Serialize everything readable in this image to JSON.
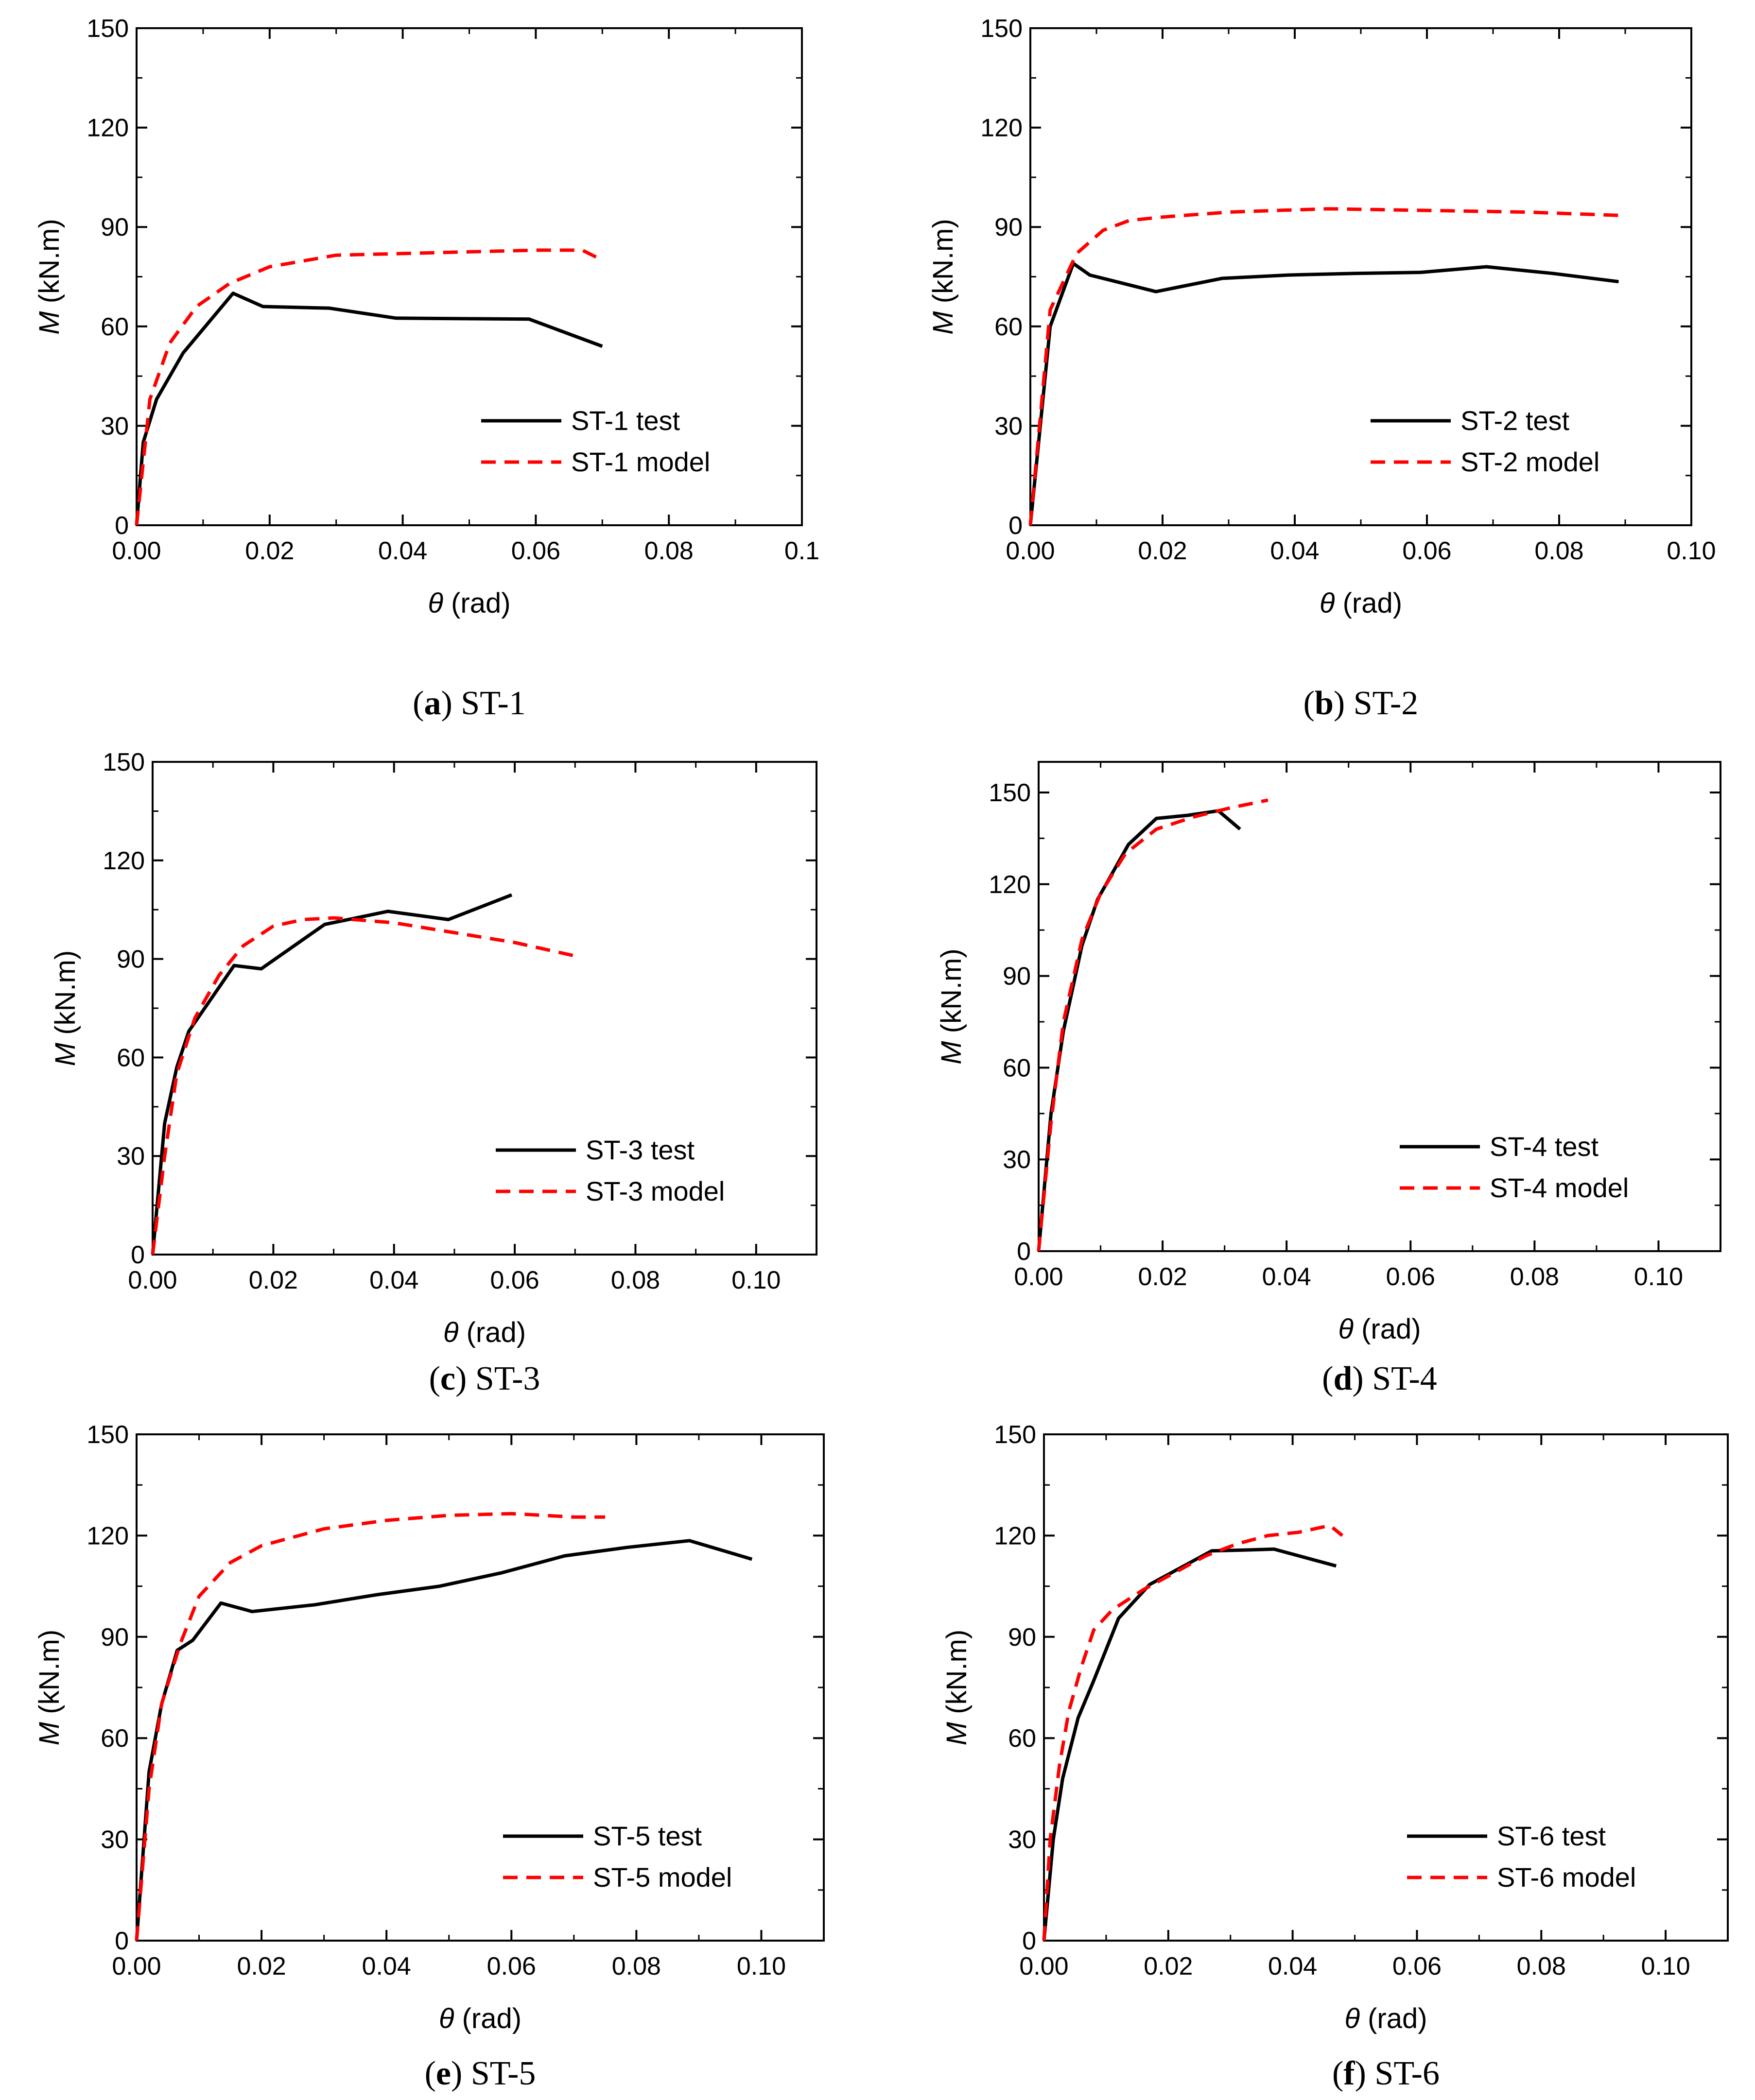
{
  "chart_data": [
    {
      "type": "line",
      "caption_letter": "a",
      "caption_name": "ST-1",
      "xlabel_symbol": "θ",
      "xlabel_unit": "(rad)",
      "ylabel_symbol": "M",
      "ylabel_unit": "(kN.m)",
      "xlim": [
        0,
        0.1
      ],
      "ylim": [
        0,
        150
      ],
      "x_ticks": [
        "0.00",
        "0.02",
        "0.04",
        "0.06",
        "0.08",
        "0.1"
      ],
      "y_ticks": [
        "0",
        "30",
        "60",
        "90",
        "120",
        "150"
      ],
      "legend_position": "lower-right",
      "series": [
        {
          "name": "ST-1 test",
          "style": "solid",
          "color": "#000000",
          "x": [
            0,
            0.001,
            0.003,
            0.007,
            0.0145,
            0.019,
            0.029,
            0.039,
            0.059,
            0.07
          ],
          "y": [
            0,
            25,
            38,
            52,
            70,
            66,
            65.5,
            62.5,
            62.2,
            54
          ]
        },
        {
          "name": "ST-1 model",
          "style": "dashed",
          "color": "#ff0000",
          "x": [
            0,
            0.002,
            0.005,
            0.009,
            0.014,
            0.02,
            0.03,
            0.04,
            0.05,
            0.06,
            0.067,
            0.07
          ],
          "y": [
            0,
            38,
            55,
            66,
            73,
            78,
            81.5,
            82,
            82.5,
            83,
            83,
            80
          ]
        }
      ]
    },
    {
      "type": "line",
      "caption_letter": "b",
      "caption_name": "ST-2",
      "xlabel_symbol": "θ",
      "xlabel_unit": "(rad)",
      "ylabel_symbol": "M",
      "ylabel_unit": "(kN.m)",
      "xlim": [
        0,
        0.1
      ],
      "ylim": [
        0,
        150
      ],
      "x_ticks": [
        "0.00",
        "0.02",
        "0.04",
        "0.06",
        "0.08",
        "0.10"
      ],
      "y_ticks": [
        "0",
        "30",
        "60",
        "90",
        "120",
        "150"
      ],
      "legend_position": "lower-right",
      "series": [
        {
          "name": "ST-2 test",
          "style": "solid",
          "color": "#000000",
          "x": [
            0,
            0.003,
            0.0065,
            0.009,
            0.019,
            0.029,
            0.039,
            0.049,
            0.059,
            0.069,
            0.079,
            0.089
          ],
          "y": [
            0,
            60,
            79,
            75.5,
            70.5,
            74.5,
            75.5,
            76,
            76.3,
            78,
            76,
            73.5
          ]
        },
        {
          "name": "ST-2 model",
          "style": "dashed",
          "color": "#ff0000",
          "x": [
            0,
            0.003,
            0.007,
            0.011,
            0.015,
            0.02,
            0.03,
            0.045,
            0.06,
            0.075,
            0.089
          ],
          "y": [
            0,
            65,
            82,
            89,
            92,
            93,
            94.5,
            95.5,
            95,
            94.5,
            93.5
          ]
        }
      ]
    },
    {
      "type": "line",
      "caption_letter": "c",
      "caption_name": "ST-3",
      "xlabel_symbol": "θ",
      "xlabel_unit": "(rad)",
      "ylabel_symbol": "M",
      "ylabel_unit": "(kN.m)",
      "xlim": [
        0,
        0.11
      ],
      "ylim": [
        0,
        150
      ],
      "x_ticks": [
        "0.00",
        "0.02",
        "0.04",
        "0.06",
        "0.08",
        "0.10"
      ],
      "y_ticks": [
        "0",
        "30",
        "60",
        "90",
        "120",
        "150"
      ],
      "legend_position": "lower-right",
      "series": [
        {
          "name": "ST-3 test",
          "style": "solid",
          "color": "#000000",
          "x": [
            0,
            0.002,
            0.004,
            0.006,
            0.009,
            0.0135,
            0.018,
            0.0285,
            0.039,
            0.049,
            0.0595
          ],
          "y": [
            0,
            40,
            57,
            68,
            76,
            88,
            87,
            100.5,
            104.5,
            102,
            109.5
          ]
        },
        {
          "name": "ST-3 model",
          "style": "dashed",
          "color": "#ff0000",
          "x": [
            0,
            0.002,
            0.004,
            0.007,
            0.011,
            0.015,
            0.02,
            0.025,
            0.03,
            0.04,
            0.05,
            0.06,
            0.071
          ],
          "y": [
            0,
            30,
            55,
            72,
            85,
            94,
            100,
            102,
            102.5,
            101,
            98,
            95,
            90.5
          ]
        }
      ]
    },
    {
      "type": "line",
      "caption_letter": "d",
      "caption_name": "ST-4",
      "xlabel_symbol": "θ",
      "xlabel_unit": "(rad)",
      "ylabel_symbol": "M",
      "ylabel_unit": "(kN.m)",
      "xlim": [
        0,
        0.11
      ],
      "ylim": [
        0,
        160
      ],
      "x_ticks": [
        "0.00",
        "0.02",
        "0.04",
        "0.06",
        "0.08",
        "0.10"
      ],
      "y_ticks": [
        "0",
        "30",
        "60",
        "90",
        "120",
        "150"
      ],
      "legend_position": "lower-right",
      "series": [
        {
          "name": "ST-4 test",
          "style": "solid",
          "color": "#000000",
          "x": [
            0,
            0.002,
            0.004,
            0.007,
            0.0095,
            0.0145,
            0.019,
            0.024,
            0.029,
            0.0325
          ],
          "y": [
            0,
            45,
            72,
            100,
            115,
            133,
            141.5,
            142.5,
            144,
            138
          ]
        },
        {
          "name": "ST-4 model",
          "style": "dashed",
          "color": "#ff0000",
          "x": [
            0,
            0.002,
            0.004,
            0.007,
            0.01,
            0.014,
            0.019,
            0.025,
            0.031,
            0.037
          ],
          "y": [
            0,
            42,
            75,
            102,
            117,
            130,
            138,
            142,
            145,
            147.5
          ]
        }
      ]
    },
    {
      "type": "line",
      "caption_letter": "e",
      "caption_name": "ST-5",
      "xlabel_symbol": "θ",
      "xlabel_unit": "(rad)",
      "ylabel_symbol": "M",
      "ylabel_unit": "(kN.m)",
      "xlim": [
        0,
        0.11
      ],
      "ylim": [
        0,
        150
      ],
      "x_ticks": [
        "0.00",
        "0.02",
        "0.04",
        "0.06",
        "0.08",
        "0.10"
      ],
      "y_ticks": [
        "0",
        "30",
        "60",
        "90",
        "120",
        "150"
      ],
      "legend_position": "lower-right",
      "series": [
        {
          "name": "ST-5 test",
          "style": "solid",
          "color": "#000000",
          "x": [
            0,
            0.002,
            0.004,
            0.0065,
            0.009,
            0.0135,
            0.0185,
            0.0285,
            0.0385,
            0.0485,
            0.0585,
            0.0685,
            0.0785,
            0.0885,
            0.0985
          ],
          "y": [
            0,
            50,
            70,
            86,
            89,
            100,
            97.5,
            99.5,
            102.5,
            105,
            109,
            114,
            116.5,
            118.5,
            113
          ]
        },
        {
          "name": "ST-5 model",
          "style": "dashed",
          "color": "#ff0000",
          "x": [
            0,
            0.002,
            0.004,
            0.007,
            0.01,
            0.015,
            0.02,
            0.03,
            0.04,
            0.05,
            0.06,
            0.07,
            0.075
          ],
          "y": [
            0,
            45,
            70,
            88,
            102,
            112,
            117,
            122,
            124.5,
            126,
            126.5,
            125.5,
            125.5
          ]
        }
      ]
    },
    {
      "type": "line",
      "caption_letter": "f",
      "caption_name": "ST-6",
      "xlabel_symbol": "θ",
      "xlabel_unit": "(rad)",
      "ylabel_symbol": "M",
      "ylabel_unit": "(kN.m)",
      "xlim": [
        0,
        0.11
      ],
      "ylim": [
        0,
        150
      ],
      "x_ticks": [
        "0.00",
        "0.02",
        "0.04",
        "0.06",
        "0.08",
        "0.10"
      ],
      "y_ticks": [
        "0",
        "30",
        "60",
        "90",
        "120",
        "150"
      ],
      "legend_position": "lower-right",
      "series": [
        {
          "name": "ST-6 test",
          "style": "solid",
          "color": "#000000",
          "x": [
            0,
            0.0015,
            0.003,
            0.0055,
            0.008,
            0.012,
            0.017,
            0.022,
            0.027,
            0.032,
            0.037,
            0.047
          ],
          "y": [
            0,
            30,
            48,
            66,
            77,
            95.5,
            105.5,
            110.5,
            115.5,
            115.7,
            116,
            111
          ]
        },
        {
          "name": "ST-6 model",
          "style": "dashed",
          "color": "#ff0000",
          "x": [
            0,
            0.001,
            0.0025,
            0.004,
            0.006,
            0.008,
            0.011,
            0.016,
            0.021,
            0.026,
            0.031,
            0.036,
            0.041,
            0.046,
            0.048
          ],
          "y": [
            0,
            30,
            52,
            68,
            81,
            92,
            98,
            104,
            109,
            114,
            117.5,
            120,
            121,
            123,
            120
          ]
        }
      ]
    }
  ]
}
